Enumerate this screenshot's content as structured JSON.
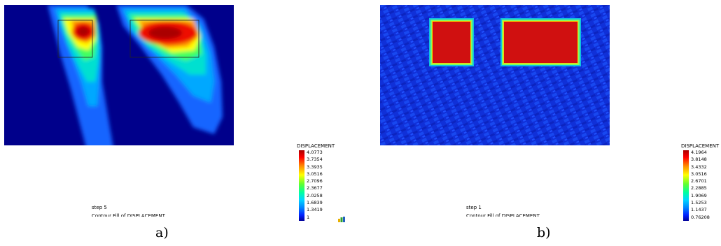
{
  "panels": [
    {
      "step_text": "step 5",
      "contour_text": "Contour Fill of DISPLACEMENT",
      "legend": {
        "title": "DISPLACEMENT",
        "ticks": [
          "4.0773",
          "3.7354",
          "3.3935",
          "3.0516",
          "2.7096",
          "2.3677",
          "2.0258",
          "1.6839",
          "1.3419",
          "1"
        ]
      },
      "sub_label": "a)"
    },
    {
      "step_text": "step 1",
      "contour_text": "Contour Fill of DISPLACEMENT",
      "legend": {
        "title": "DISPLACEMENT",
        "ticks": [
          "4.1964",
          "3.8148",
          "3.4332",
          "3.0516",
          "2.6701",
          "2.2885",
          "1.9069",
          "1.5253",
          "1.1437",
          "0.76208"
        ]
      },
      "sub_label": "b)"
    }
  ],
  "colors": {
    "background": "#00008b",
    "high": "#cc0000",
    "low": "#000099"
  }
}
